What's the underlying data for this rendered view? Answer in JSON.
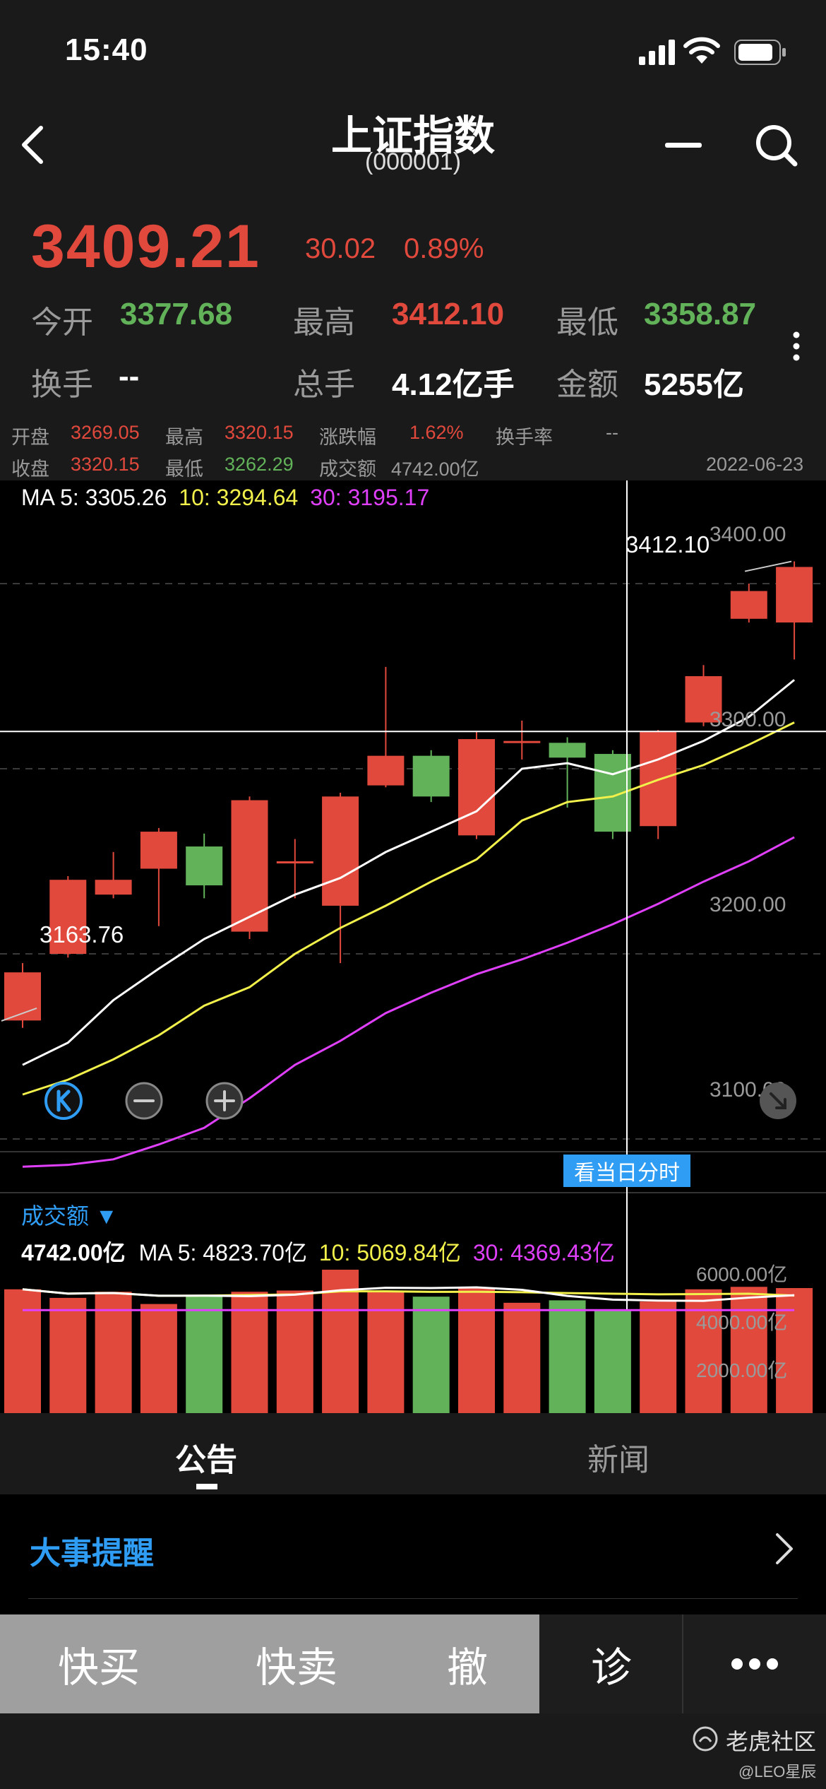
{
  "status": {
    "time": "15:40"
  },
  "header": {
    "title": "上证指数",
    "code": "(000001)"
  },
  "quote": {
    "price": "3409.21",
    "change": "30.02",
    "change_pct": "0.89%",
    "row1": [
      {
        "label": "今开",
        "value": "3377.68"
      },
      {
        "label": "最高",
        "value": "3412.10"
      },
      {
        "label": "最低",
        "value": "3358.87"
      }
    ],
    "row2": [
      {
        "label": "换手",
        "value": "--"
      },
      {
        "label": "总手",
        "value": "4.12亿手"
      },
      {
        "label": "金额",
        "value": "5255亿"
      }
    ]
  },
  "crosshair_info": {
    "open_label": "开盘",
    "open": "3269.05",
    "high_label": "最高",
    "high": "3320.15",
    "pct_label": "涨跌幅",
    "pct": "1.62%",
    "turnover_label": "换手率",
    "turnover": "--",
    "close_label": "收盘",
    "close": "3320.15",
    "low_label": "最低",
    "low": "3262.29",
    "amount_label": "成交额",
    "amount": "4742.00亿",
    "date": "2022-06-23"
  },
  "ma_legend": {
    "ma": "MA",
    "ma5": "5: 3305.26",
    "ma10": "10: 3294.64",
    "ma30": "30: 3195.17"
  },
  "chart_labels": {
    "high_marker": "3412.10",
    "low_marker": "3163.76",
    "intraday": "看当日分时"
  },
  "volume": {
    "title": "成交额 ▼",
    "current": "4742.00亿",
    "ma": "MA",
    "ma5": "5: 4823.70亿",
    "ma10": "10: 5069.84亿",
    "ma30": "30: 4369.43亿"
  },
  "tabs": {
    "notice": "公告",
    "news": "新闻"
  },
  "events": {
    "title": "大事提醒"
  },
  "bottom": {
    "quick_buy": "快买",
    "quick_sell": "快卖",
    "cancel": "撤",
    "diagnose": "诊"
  },
  "footer": {
    "brand": "老虎社区",
    "user": "@LEO星辰"
  },
  "colors": {
    "up": "#e2493d",
    "down": "#62b25a",
    "ma5": "#ffffff",
    "ma10": "#f2f04b",
    "ma30": "#e040fb",
    "accent": "#2f9df4"
  },
  "chart_data": {
    "type": "candlestick",
    "y_axis_ticks": [
      "3400.00",
      "3300.00",
      "3200.00",
      "3100.00"
    ],
    "ylim": [
      3065,
      3430
    ],
    "candles": [
      {
        "o": 3164,
        "c": 3190,
        "h": 3195,
        "l": 3160
      },
      {
        "o": 3200,
        "c": 3240,
        "h": 3242,
        "l": 3198
      },
      {
        "o": 3232,
        "c": 3240,
        "h": 3255,
        "l": 3230
      },
      {
        "o": 3246,
        "c": 3266,
        "h": 3268,
        "l": 3215
      },
      {
        "o": 3258,
        "c": 3237,
        "h": 3265,
        "l": 3230
      },
      {
        "o": 3212,
        "c": 3283,
        "h": 3285,
        "l": 3208
      },
      {
        "o": 3250,
        "c": 3250,
        "h": 3262,
        "l": 3230
      },
      {
        "o": 3226,
        "c": 3285,
        "h": 3287,
        "l": 3195
      },
      {
        "o": 3291,
        "c": 3307,
        "h": 3355,
        "l": 3290
      },
      {
        "o": 3307,
        "c": 3285,
        "h": 3310,
        "l": 3282
      },
      {
        "o": 3264,
        "c": 3316,
        "h": 3320,
        "l": 3262
      },
      {
        "o": 3315,
        "c": 3315,
        "h": 3326,
        "l": 3305
      },
      {
        "o": 3314,
        "c": 3306,
        "h": 3317,
        "l": 3279
      },
      {
        "o": 3308,
        "c": 3266,
        "h": 3310,
        "l": 3262
      },
      {
        "o": 3269,
        "c": 3320,
        "h": 3321,
        "l": 3262
      },
      {
        "o": 3325,
        "c": 3350,
        "h": 3356,
        "l": 3323
      },
      {
        "o": 3381,
        "c": 3396,
        "h": 3400,
        "l": 3379
      },
      {
        "o": 3379,
        "c": 3409,
        "h": 3412,
        "l": 3359
      }
    ],
    "ma5": [
      3140,
      3152,
      3175,
      3192,
      3208,
      3220,
      3232,
      3241,
      3255,
      3266,
      3277,
      3300,
      3303,
      3297,
      3305,
      3315,
      3328,
      3348
    ],
    "ma10": [
      3124,
      3132,
      3143,
      3156,
      3172,
      3182,
      3200,
      3214,
      3226,
      3239,
      3251,
      3272,
      3282,
      3285,
      3294,
      3302,
      3313,
      3325
    ],
    "ma30": [
      3085,
      3086,
      3089,
      3097,
      3106,
      3122,
      3140,
      3153,
      3168,
      3179,
      3189,
      3197,
      3206,
      3216,
      3227,
      3239,
      3250,
      3263
    ],
    "volume_ticks": [
      "6000.00亿",
      "4000.00亿",
      "2000.00亿"
    ],
    "volume_values": [
      5050,
      4700,
      4950,
      4450,
      4800,
      4950,
      5000,
      5850,
      4950,
      4750,
      5100,
      4500,
      4600,
      4200,
      4550,
      5050,
      5150,
      5100
    ]
  }
}
